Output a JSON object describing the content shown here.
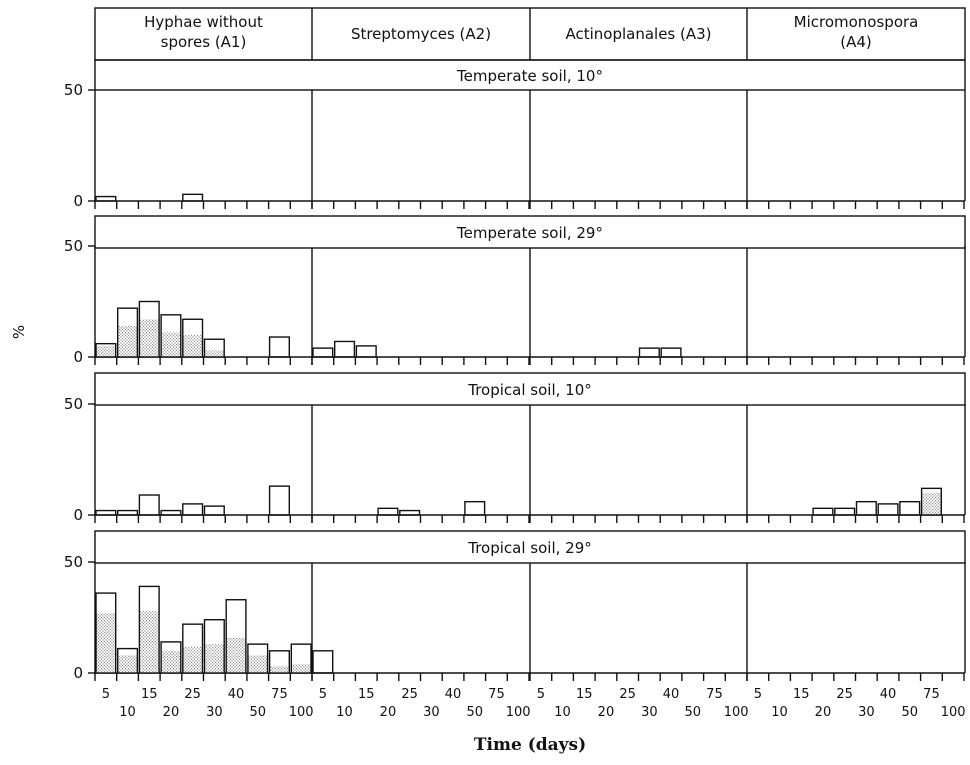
{
  "chart_data": {
    "type": "bar",
    "ylabel": "%",
    "xlabel": "Time (days)",
    "ylim": [
      0,
      50
    ],
    "yticks": [
      0,
      50
    ],
    "categories": [
      "5",
      "10",
      "15",
      "20",
      "25",
      "30",
      "40",
      "50",
      "75",
      "100"
    ],
    "columns": [
      {
        "id": "A1",
        "label_lines": [
          "Hyphae without",
          "spores (A1)"
        ]
      },
      {
        "id": "A2",
        "label_lines": [
          "Streptomyces  (A2)"
        ]
      },
      {
        "id": "A3",
        "label_lines": [
          "Actinoplanales (A3)"
        ]
      },
      {
        "id": "A4",
        "label_lines": [
          "Micromonospora",
          "(A4)"
        ]
      }
    ],
    "series_encoding": {
      "bar_outline": "total percentage",
      "stippled_fill": "stippled portion of total"
    },
    "panels": [
      {
        "title": "Temperate soil, 10°",
        "groups": {
          "A1": {
            "total": [
              2,
              0,
              0,
              0,
              3,
              0,
              0,
              0,
              0,
              0
            ],
            "stippled": [
              0,
              0,
              0,
              0,
              0,
              0,
              0,
              0,
              0,
              0
            ]
          },
          "A2": {
            "total": [
              0,
              0,
              0,
              0,
              0,
              0,
              0,
              0,
              0,
              0
            ],
            "stippled": [
              0,
              0,
              0,
              0,
              0,
              0,
              0,
              0,
              0,
              0
            ]
          },
          "A3": {
            "total": [
              0,
              0,
              0,
              0,
              0,
              0,
              0,
              0,
              0,
              0
            ],
            "stippled": [
              0,
              0,
              0,
              0,
              0,
              0,
              0,
              0,
              0,
              0
            ]
          },
          "A4": {
            "total": [
              0,
              0,
              0,
              0,
              0,
              0,
              0,
              0,
              0,
              0
            ],
            "stippled": [
              0,
              0,
              0,
              0,
              0,
              0,
              0,
              0,
              0,
              0
            ]
          }
        }
      },
      {
        "title": "Temperate soil, 29°",
        "groups": {
          "A1": {
            "total": [
              6,
              22,
              25,
              19,
              17,
              8,
              0,
              0,
              9,
              0
            ],
            "stippled": [
              5,
              14,
              17,
              11,
              10,
              3,
              0,
              0,
              0,
              0
            ]
          },
          "A2": {
            "total": [
              4,
              7,
              5,
              0,
              0,
              0,
              0,
              0,
              0,
              0
            ],
            "stippled": [
              0,
              0,
              0,
              0,
              0,
              0,
              0,
              0,
              0,
              0
            ]
          },
          "A3": {
            "total": [
              0,
              0,
              0,
              0,
              0,
              4,
              4,
              0,
              0,
              0
            ],
            "stippled": [
              0,
              0,
              0,
              0,
              0,
              0,
              0,
              0,
              0,
              0
            ]
          },
          "A4": {
            "total": [
              0,
              0,
              0,
              0,
              0,
              0,
              0,
              0,
              0,
              0
            ],
            "stippled": [
              0,
              0,
              0,
              0,
              0,
              0,
              0,
              0,
              0,
              0
            ]
          }
        }
      },
      {
        "title": "Tropical soil, 10°",
        "groups": {
          "A1": {
            "total": [
              2,
              2,
              9,
              2,
              5,
              4,
              0,
              0,
              13,
              0
            ],
            "stippled": [
              0,
              0,
              0,
              0,
              0,
              0,
              0,
              0,
              0,
              0
            ]
          },
          "A2": {
            "total": [
              0,
              0,
              0,
              3,
              2,
              0,
              0,
              6,
              0,
              0
            ],
            "stippled": [
              0,
              0,
              0,
              0,
              0,
              0,
              0,
              0,
              0,
              0
            ]
          },
          "A3": {
            "total": [
              0,
              0,
              0,
              0,
              0,
              0,
              0,
              0,
              0,
              0
            ],
            "stippled": [
              0,
              0,
              0,
              0,
              0,
              0,
              0,
              0,
              0,
              0
            ]
          },
          "A4": {
            "total": [
              0,
              0,
              0,
              3,
              3,
              6,
              5,
              6,
              12,
              0
            ],
            "stippled": [
              0,
              0,
              0,
              0,
              0,
              0,
              0,
              0,
              10,
              0
            ]
          }
        }
      },
      {
        "title": "Tropical soil, 29°",
        "groups": {
          "A1": {
            "total": [
              36,
              11,
              39,
              14,
              22,
              24,
              33,
              13,
              10,
              13
            ],
            "stippled": [
              27,
              8,
              28,
              10,
              12,
              13,
              16,
              8,
              3,
              4
            ]
          },
          "A2": {
            "total": [
              10,
              0,
              0,
              0,
              0,
              0,
              0,
              0,
              0,
              0
            ],
            "stippled": [
              0,
              0,
              0,
              0,
              0,
              0,
              0,
              0,
              0,
              0
            ]
          },
          "A3": {
            "total": [
              0,
              0,
              0,
              0,
              0,
              0,
              0,
              0,
              0,
              0
            ],
            "stippled": [
              0,
              0,
              0,
              0,
              0,
              0,
              0,
              0,
              0,
              0
            ]
          },
          "A4": {
            "total": [
              0,
              0,
              0,
              0,
              0,
              0,
              0,
              0,
              0,
              0
            ],
            "stippled": [
              0,
              0,
              0,
              0,
              0,
              0,
              0,
              0,
              0,
              0
            ]
          }
        }
      }
    ],
    "grid": false,
    "colors": {
      "ink": "#111111",
      "stipple": "#b9b9b9",
      "background": "#ffffff"
    }
  }
}
